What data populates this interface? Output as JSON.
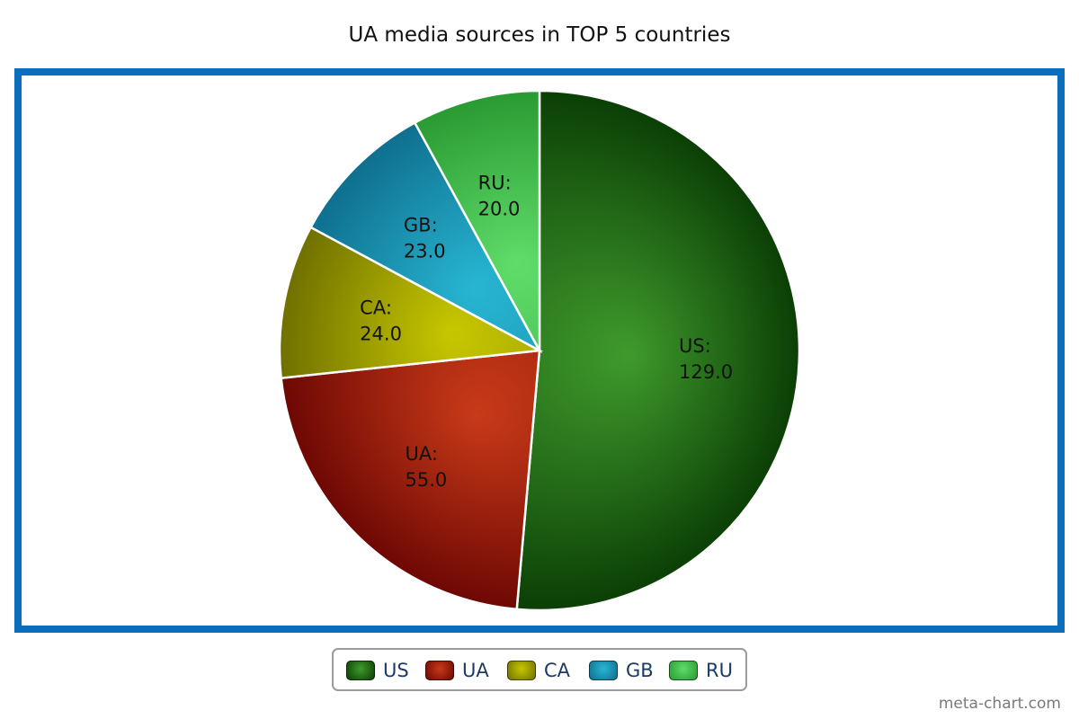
{
  "watermark": "meta-chart.com",
  "chart_data": {
    "type": "pie",
    "title": "UA media sources in TOP 5 countries",
    "slices": [
      {
        "label": "US",
        "value": 129.0,
        "value_text": "129.0",
        "color": "#1f6f12",
        "light": "#3f9a2c",
        "dark": "#0b3f05"
      },
      {
        "label": "UA",
        "value": 55.0,
        "value_text": "55.0",
        "color": "#a8240d",
        "light": "#c83a18",
        "dark": "#6e0804"
      },
      {
        "label": "CA",
        "value": 24.0,
        "value_text": "24.0",
        "color": "#a8a800",
        "light": "#c7c700",
        "dark": "#6f7000"
      },
      {
        "label": "GB",
        "value": 23.0,
        "value_text": "23.0",
        "color": "#1a9bb8",
        "light": "#27b6d2",
        "dark": "#0f6f8f"
      },
      {
        "label": "RU",
        "value": 20.0,
        "value_text": "20.0",
        "color": "#3fbf4a",
        "light": "#5fdc6a",
        "dark": "#2a9a32"
      }
    ],
    "legend": {
      "position": "bottom",
      "items": [
        "US",
        "UA",
        "CA",
        "GB",
        "RU"
      ]
    }
  }
}
